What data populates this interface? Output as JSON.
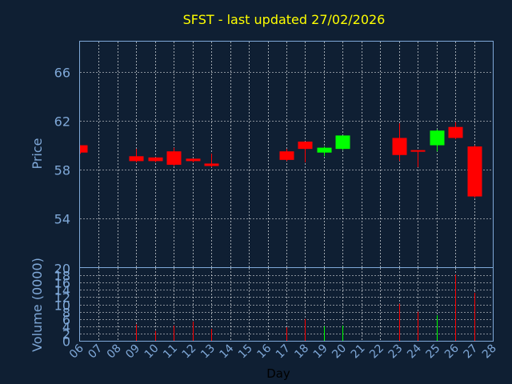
{
  "chart_data": {
    "type": "candlestick",
    "title": "SFST - last updated 27/02/2026",
    "xlabel": "Day",
    "ylabel": "Price",
    "volume_label": "Volume (0000)",
    "ylim": [
      50,
      68.5
    ],
    "y_ticks": [
      54,
      58,
      62,
      66
    ],
    "volume_ylim": [
      0,
      20
    ],
    "volume_ticks": [
      0,
      2,
      4,
      6,
      8,
      10,
      12,
      14,
      16,
      18,
      20
    ],
    "x_range": [
      6,
      28
    ],
    "x_ticks": [
      "06",
      "07",
      "08",
      "09",
      "10",
      "11",
      "12",
      "13",
      "14",
      "15",
      "16",
      "17",
      "18",
      "19",
      "20",
      "21",
      "22",
      "23",
      "24",
      "25",
      "26",
      "27",
      "28"
    ],
    "grid": true,
    "colors": {
      "background": "#0f1f33",
      "up": "#00ff00",
      "down": "#ff0000",
      "title": "#ffff00",
      "axis": "#7fa8d8",
      "grid": "#ffffff",
      "xlabel": "#000000"
    },
    "candles": [
      {
        "day": 6,
        "open": 60.0,
        "high": 60.0,
        "low": 59.3,
        "close": 59.4,
        "volume": 0
      },
      {
        "day": 9,
        "open": 59.1,
        "high": 59.7,
        "low": 58.6,
        "close": 58.7,
        "volume": 4.5
      },
      {
        "day": 10,
        "open": 59.0,
        "high": 59.0,
        "low": 58.6,
        "close": 58.7,
        "volume": 2.7
      },
      {
        "day": 11,
        "open": 59.5,
        "high": 59.8,
        "low": 58.3,
        "close": 58.4,
        "volume": 4.2
      },
      {
        "day": 12,
        "open": 58.9,
        "high": 58.9,
        "low": 58.6,
        "close": 58.7,
        "volume": 5.3
      },
      {
        "day": 13,
        "open": 58.5,
        "high": 59.3,
        "low": 58.2,
        "close": 58.3,
        "volume": 3.3
      },
      {
        "day": 17,
        "open": 59.5,
        "high": 59.7,
        "low": 58.7,
        "close": 58.8,
        "volume": 3.7
      },
      {
        "day": 18,
        "open": 60.3,
        "high": 60.3,
        "low": 58.6,
        "close": 59.7,
        "volume": 6.0
      },
      {
        "day": 19,
        "open": 59.4,
        "high": 59.9,
        "low": 59.1,
        "close": 59.8,
        "volume": 4.0
      },
      {
        "day": 20,
        "open": 59.7,
        "high": 60.8,
        "low": 59.6,
        "close": 60.8,
        "volume": 4.2
      },
      {
        "day": 23,
        "open": 60.6,
        "high": 61.8,
        "low": 58.7,
        "close": 59.2,
        "volume": 10.2
      },
      {
        "day": 24,
        "open": 59.6,
        "high": 59.6,
        "low": 58.2,
        "close": 59.5,
        "volume": 8.0
      },
      {
        "day": 25,
        "open": 60.0,
        "high": 61.3,
        "low": 59.5,
        "close": 61.2,
        "volume": 7.0
      },
      {
        "day": 26,
        "open": 61.5,
        "high": 61.9,
        "low": 60.5,
        "close": 60.6,
        "volume": 18.2
      },
      {
        "day": 27,
        "open": 59.9,
        "high": 60.0,
        "low": 55.7,
        "close": 55.8,
        "volume": 13.2
      }
    ]
  }
}
